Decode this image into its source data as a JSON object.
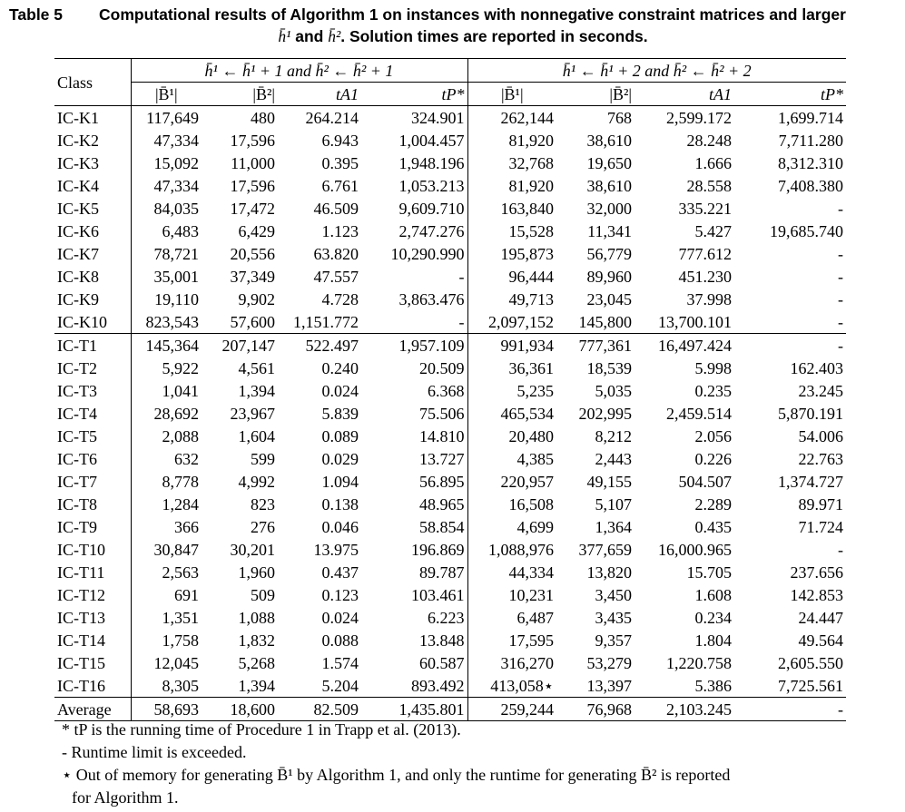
{
  "caption": {
    "label": "Table 5",
    "title_line1": "Computational results of Algorithm 1 on instances with nonnegative constraint matrices and larger",
    "title_line2_prefix": "h̄¹",
    "title_line2_and": " and ",
    "title_line2_h2": "h̄²",
    "title_line2_suffix": ". Solution times are reported in seconds."
  },
  "table": {
    "class_header": "Class",
    "group1_header": "h̄¹ ← h̄¹ + 1 and h̄² ← h̄² + 1",
    "group2_header": "h̄¹ ← h̄¹ + 2 and h̄² ← h̄² + 2",
    "sub_headers": [
      "|B̄¹|",
      "|B̄²|",
      "tA1",
      "tP*",
      "|B̄¹|",
      "|B̄²|",
      "tA1",
      "tP*"
    ],
    "rows_k": [
      [
        "IC-K1",
        "117,649",
        "480",
        "264.214",
        "324.901",
        "262,144",
        "768",
        "2,599.172",
        "1,699.714"
      ],
      [
        "IC-K2",
        "47,334",
        "17,596",
        "6.943",
        "1,004.457",
        "81,920",
        "38,610",
        "28.248",
        "7,711.280"
      ],
      [
        "IC-K3",
        "15,092",
        "11,000",
        "0.395",
        "1,948.196",
        "32,768",
        "19,650",
        "1.666",
        "8,312.310"
      ],
      [
        "IC-K4",
        "47,334",
        "17,596",
        "6.761",
        "1,053.213",
        "81,920",
        "38,610",
        "28.558",
        "7,408.380"
      ],
      [
        "IC-K5",
        "84,035",
        "17,472",
        "46.509",
        "9,609.710",
        "163,840",
        "32,000",
        "335.221",
        "-"
      ],
      [
        "IC-K6",
        "6,483",
        "6,429",
        "1.123",
        "2,747.276",
        "15,528",
        "11,341",
        "5.427",
        "19,685.740"
      ],
      [
        "IC-K7",
        "78,721",
        "20,556",
        "63.820",
        "10,290.990",
        "195,873",
        "56,779",
        "777.612",
        "-"
      ],
      [
        "IC-K8",
        "35,001",
        "37,349",
        "47.557",
        "-",
        "96,444",
        "89,960",
        "451.230",
        "-"
      ],
      [
        "IC-K9",
        "19,110",
        "9,902",
        "4.728",
        "3,863.476",
        "49,713",
        "23,045",
        "37.998",
        "-"
      ],
      [
        "IC-K10",
        "823,543",
        "57,600",
        "1,151.772",
        "-",
        "2,097,152",
        "145,800",
        "13,700.101",
        "-"
      ]
    ],
    "rows_t": [
      [
        "IC-T1",
        "145,364",
        "207,147",
        "522.497",
        "1,957.109",
        "991,934",
        "777,361",
        "16,497.424",
        "-"
      ],
      [
        "IC-T2",
        "5,922",
        "4,561",
        "0.240",
        "20.509",
        "36,361",
        "18,539",
        "5.998",
        "162.403"
      ],
      [
        "IC-T3",
        "1,041",
        "1,394",
        "0.024",
        "6.368",
        "5,235",
        "5,035",
        "0.235",
        "23.245"
      ],
      [
        "IC-T4",
        "28,692",
        "23,967",
        "5.839",
        "75.506",
        "465,534",
        "202,995",
        "2,459.514",
        "5,870.191"
      ],
      [
        "IC-T5",
        "2,088",
        "1,604",
        "0.089",
        "14.810",
        "20,480",
        "8,212",
        "2.056",
        "54.006"
      ],
      [
        "IC-T6",
        "632",
        "599",
        "0.029",
        "13.727",
        "4,385",
        "2,443",
        "0.226",
        "22.763"
      ],
      [
        "IC-T7",
        "8,778",
        "4,992",
        "1.094",
        "56.895",
        "220,957",
        "49,155",
        "504.507",
        "1,374.727"
      ],
      [
        "IC-T8",
        "1,284",
        "823",
        "0.138",
        "48.965",
        "16,508",
        "5,107",
        "2.289",
        "89.971"
      ],
      [
        "IC-T9",
        "366",
        "276",
        "0.046",
        "58.854",
        "4,699",
        "1,364",
        "0.435",
        "71.724"
      ],
      [
        "IC-T10",
        "30,847",
        "30,201",
        "13.975",
        "196.869",
        "1,088,976",
        "377,659",
        "16,000.965",
        "-"
      ],
      [
        "IC-T11",
        "2,563",
        "1,960",
        "0.437",
        "89.787",
        "44,334",
        "13,820",
        "15.705",
        "237.656"
      ],
      [
        "IC-T12",
        "691",
        "509",
        "0.123",
        "103.461",
        "10,231",
        "3,450",
        "1.608",
        "142.853"
      ],
      [
        "IC-T13",
        "1,351",
        "1,088",
        "0.024",
        "6.223",
        "6,487",
        "3,435",
        "0.234",
        "24.447"
      ],
      [
        "IC-T14",
        "1,758",
        "1,832",
        "0.088",
        "13.848",
        "17,595",
        "9,357",
        "1.804",
        "49.564"
      ],
      [
        "IC-T15",
        "12,045",
        "5,268",
        "1.574",
        "60.587",
        "316,270",
        "53,279",
        "1,220.758",
        "2,605.550"
      ],
      [
        "IC-T16",
        "8,305",
        "1,394",
        "5.204",
        "893.492",
        "413,058⋆",
        "13,397",
        "5.386",
        "7,725.561"
      ]
    ],
    "average_row": [
      "Average",
      "58,693",
      "18,600",
      "82.509",
      "1,435.801",
      "259,244",
      "76,968",
      "2,103.245",
      "-"
    ]
  },
  "notes": [
    "* tP is the running time of Procedure 1 in Trapp et al. (2013).",
    "- Runtime limit is exceeded.",
    "⋆ Out of memory for generating B̄¹ by Algorithm 1, and only the runtime for generating B̄² is reported",
    "for Algorithm 1."
  ]
}
